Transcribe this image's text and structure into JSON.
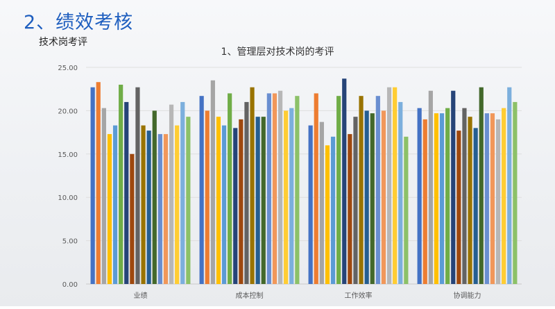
{
  "page": {
    "title": "2、绩效考核",
    "subtitle": "技术岗考评"
  },
  "chart_data": {
    "type": "bar",
    "title": "1、管理层对技术岗的考评",
    "xlabel": "",
    "ylabel": "",
    "ylim": [
      0,
      25
    ],
    "yticks": [
      "0.00",
      "5.00",
      "10.00",
      "15.00",
      "20.00",
      "25.00"
    ],
    "grid": true,
    "categories": [
      "业绩",
      "成本控制",
      "工作效率",
      "协调能力"
    ],
    "series": [
      {
        "color": "#4472c4",
        "values": [
          22.7,
          21.7,
          18.3,
          20.3
        ]
      },
      {
        "color": "#ed7d31",
        "values": [
          23.3,
          20.0,
          22.0,
          19.0
        ]
      },
      {
        "color": "#a5a5a5",
        "values": [
          20.3,
          23.5,
          18.7,
          22.3
        ]
      },
      {
        "color": "#ffc000",
        "values": [
          17.3,
          19.3,
          16.0,
          19.7
        ]
      },
      {
        "color": "#5b9bd5",
        "values": [
          18.3,
          18.3,
          17.0,
          19.7
        ]
      },
      {
        "color": "#70ad47",
        "values": [
          23.0,
          22.0,
          21.7,
          20.3
        ]
      },
      {
        "color": "#264478",
        "values": [
          21.0,
          18.0,
          23.7,
          22.3
        ]
      },
      {
        "color": "#9e480e",
        "values": [
          15.0,
          19.0,
          17.3,
          17.7
        ]
      },
      {
        "color": "#636363",
        "values": [
          22.7,
          21.0,
          19.3,
          20.3
        ]
      },
      {
        "color": "#997300",
        "values": [
          18.3,
          22.7,
          21.7,
          19.3
        ]
      },
      {
        "color": "#255e91",
        "values": [
          17.7,
          19.3,
          20.0,
          18.0
        ]
      },
      {
        "color": "#43682b",
        "values": [
          20.0,
          19.3,
          19.7,
          22.7
        ]
      },
      {
        "color": "#698ed0",
        "values": [
          17.3,
          22.0,
          21.7,
          19.7
        ]
      },
      {
        "color": "#f1975a",
        "values": [
          17.3,
          22.0,
          20.0,
          19.7
        ]
      },
      {
        "color": "#b7b7b7",
        "values": [
          20.7,
          22.3,
          22.7,
          19.0
        ]
      },
      {
        "color": "#ffcd33",
        "values": [
          18.3,
          20.0,
          22.7,
          20.3
        ]
      },
      {
        "color": "#7cafdd",
        "values": [
          21.0,
          20.3,
          21.0,
          22.7
        ]
      },
      {
        "color": "#8cc168",
        "values": [
          19.3,
          21.7,
          17.0,
          21.0
        ]
      }
    ]
  }
}
